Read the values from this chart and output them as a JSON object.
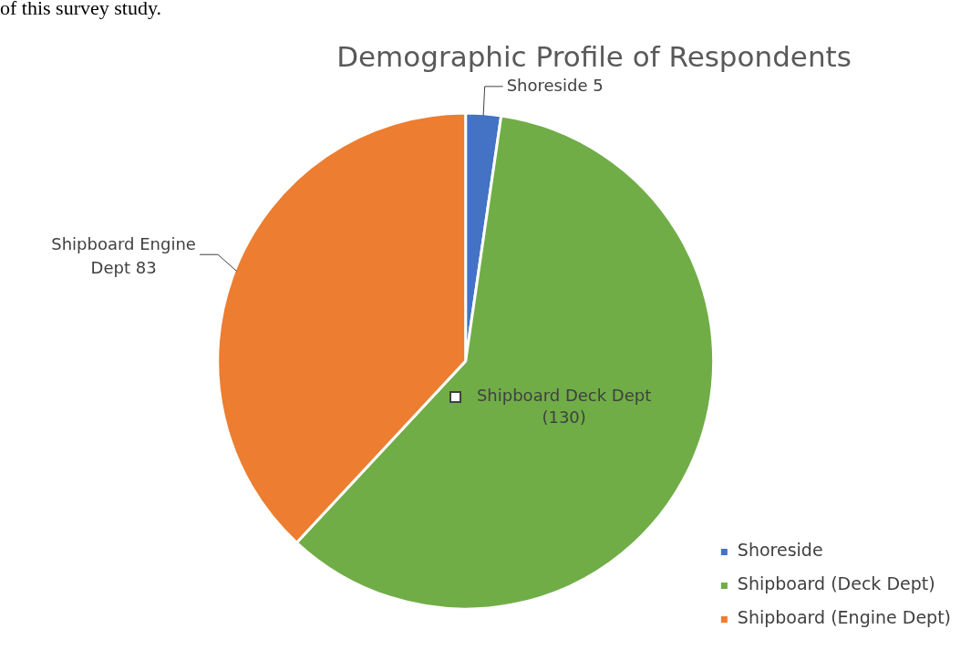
{
  "chart_data": {
    "type": "pie",
    "title": "Demographic Profile of Respondents",
    "categories": [
      "Shoreside",
      "Shipboard (Deck Dept)",
      "Shipboard (Engine Dept)"
    ],
    "values": [
      5,
      130,
      83
    ],
    "colors": [
      "#4472c4",
      "#70ad47",
      "#ed7d31"
    ],
    "value_labels": [
      "Shoreside 5",
      "Shipboard Deck Dept (130)",
      "Shipboard Engine Dept 83"
    ],
    "legend": "bottom right",
    "annotations": [
      "of this survey study."
    ]
  }
}
